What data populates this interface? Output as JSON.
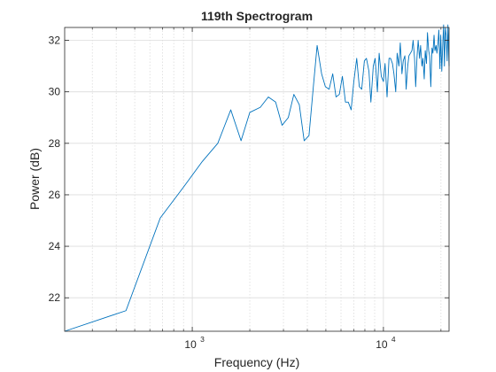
{
  "chart_data": {
    "type": "line",
    "title": "119th Spectrogram",
    "xlabel": "Frequency (Hz)",
    "ylabel": "Power (dB)",
    "xscale": "log",
    "xlim": [
      215,
      22050
    ],
    "ylim": [
      20.7,
      32.5
    ],
    "grid": true,
    "minor_grid": true,
    "x_ticks": [
      {
        "value": 1000,
        "base": "10",
        "exp": "3"
      },
      {
        "value": 10000,
        "base": "10",
        "exp": "4"
      }
    ],
    "y_ticks": [
      22,
      24,
      26,
      28,
      30,
      32
    ],
    "line_color": "#0072BD",
    "series": [
      {
        "x": [
          215,
          450,
          680,
          900,
          1130,
          1360,
          1590,
          1800,
          2000,
          2270,
          2500,
          2730,
          2950,
          3180,
          3400,
          3630,
          3850,
          4080,
          4300,
          4500,
          4750,
          4970,
          5200,
          5430,
          5650,
          5880,
          6100,
          6330,
          6550,
          6780,
          7000,
          7250,
          7480,
          7700,
          7950,
          8150,
          8400,
          8600,
          8850,
          9050,
          9300,
          9500,
          9750,
          10000,
          10200,
          10450,
          10700,
          10900,
          11150,
          11350,
          11600,
          11800,
          12050,
          12250,
          12500,
          12700,
          12950,
          13150,
          13400,
          13600,
          13850,
          14100,
          14300,
          14550,
          14750,
          15000,
          15200,
          15450,
          15650,
          15900,
          16100,
          16350,
          16550,
          16800,
          17000,
          17250,
          17450,
          17700,
          17950,
          18150,
          18400,
          18600,
          18850,
          19050,
          19300,
          19500,
          19750,
          19950,
          20200,
          20400,
          20650,
          20850,
          21100,
          21300,
          21550,
          21750,
          22050
        ],
        "y": [
          20.7,
          21.5,
          25.1,
          26.3,
          27.3,
          28.0,
          29.3,
          28.1,
          29.2,
          29.4,
          29.8,
          29.6,
          28.7,
          29.0,
          29.9,
          29.5,
          28.1,
          28.3,
          30.2,
          31.8,
          30.7,
          30.2,
          30.1,
          30.7,
          29.8,
          29.9,
          30.6,
          29.6,
          29.6,
          29.3,
          30.4,
          31.3,
          30.2,
          30.1,
          31.2,
          31.3,
          30.8,
          29.6,
          31.0,
          31.3,
          30.0,
          31.5,
          30.6,
          30.4,
          31.1,
          29.8,
          31.3,
          31.3,
          31.1,
          30.7,
          30.0,
          31.5,
          31.0,
          31.9,
          30.7,
          31.2,
          31.4,
          30.1,
          31.0,
          31.4,
          31.5,
          31.6,
          32.0,
          31.3,
          30.2,
          31.4,
          32.0,
          31.3,
          31.8,
          31.0,
          31.3,
          30.5,
          31.6,
          31.1,
          32.3,
          31.6,
          31.4,
          30.2,
          31.7,
          31.5,
          32.2,
          31.6,
          31.8,
          31.5,
          31.9,
          32.4,
          30.9,
          32.2,
          30.8,
          31.7,
          32.6,
          31.0,
          32.5,
          32.2,
          31.2,
          32.6,
          31.0
        ]
      }
    ]
  }
}
